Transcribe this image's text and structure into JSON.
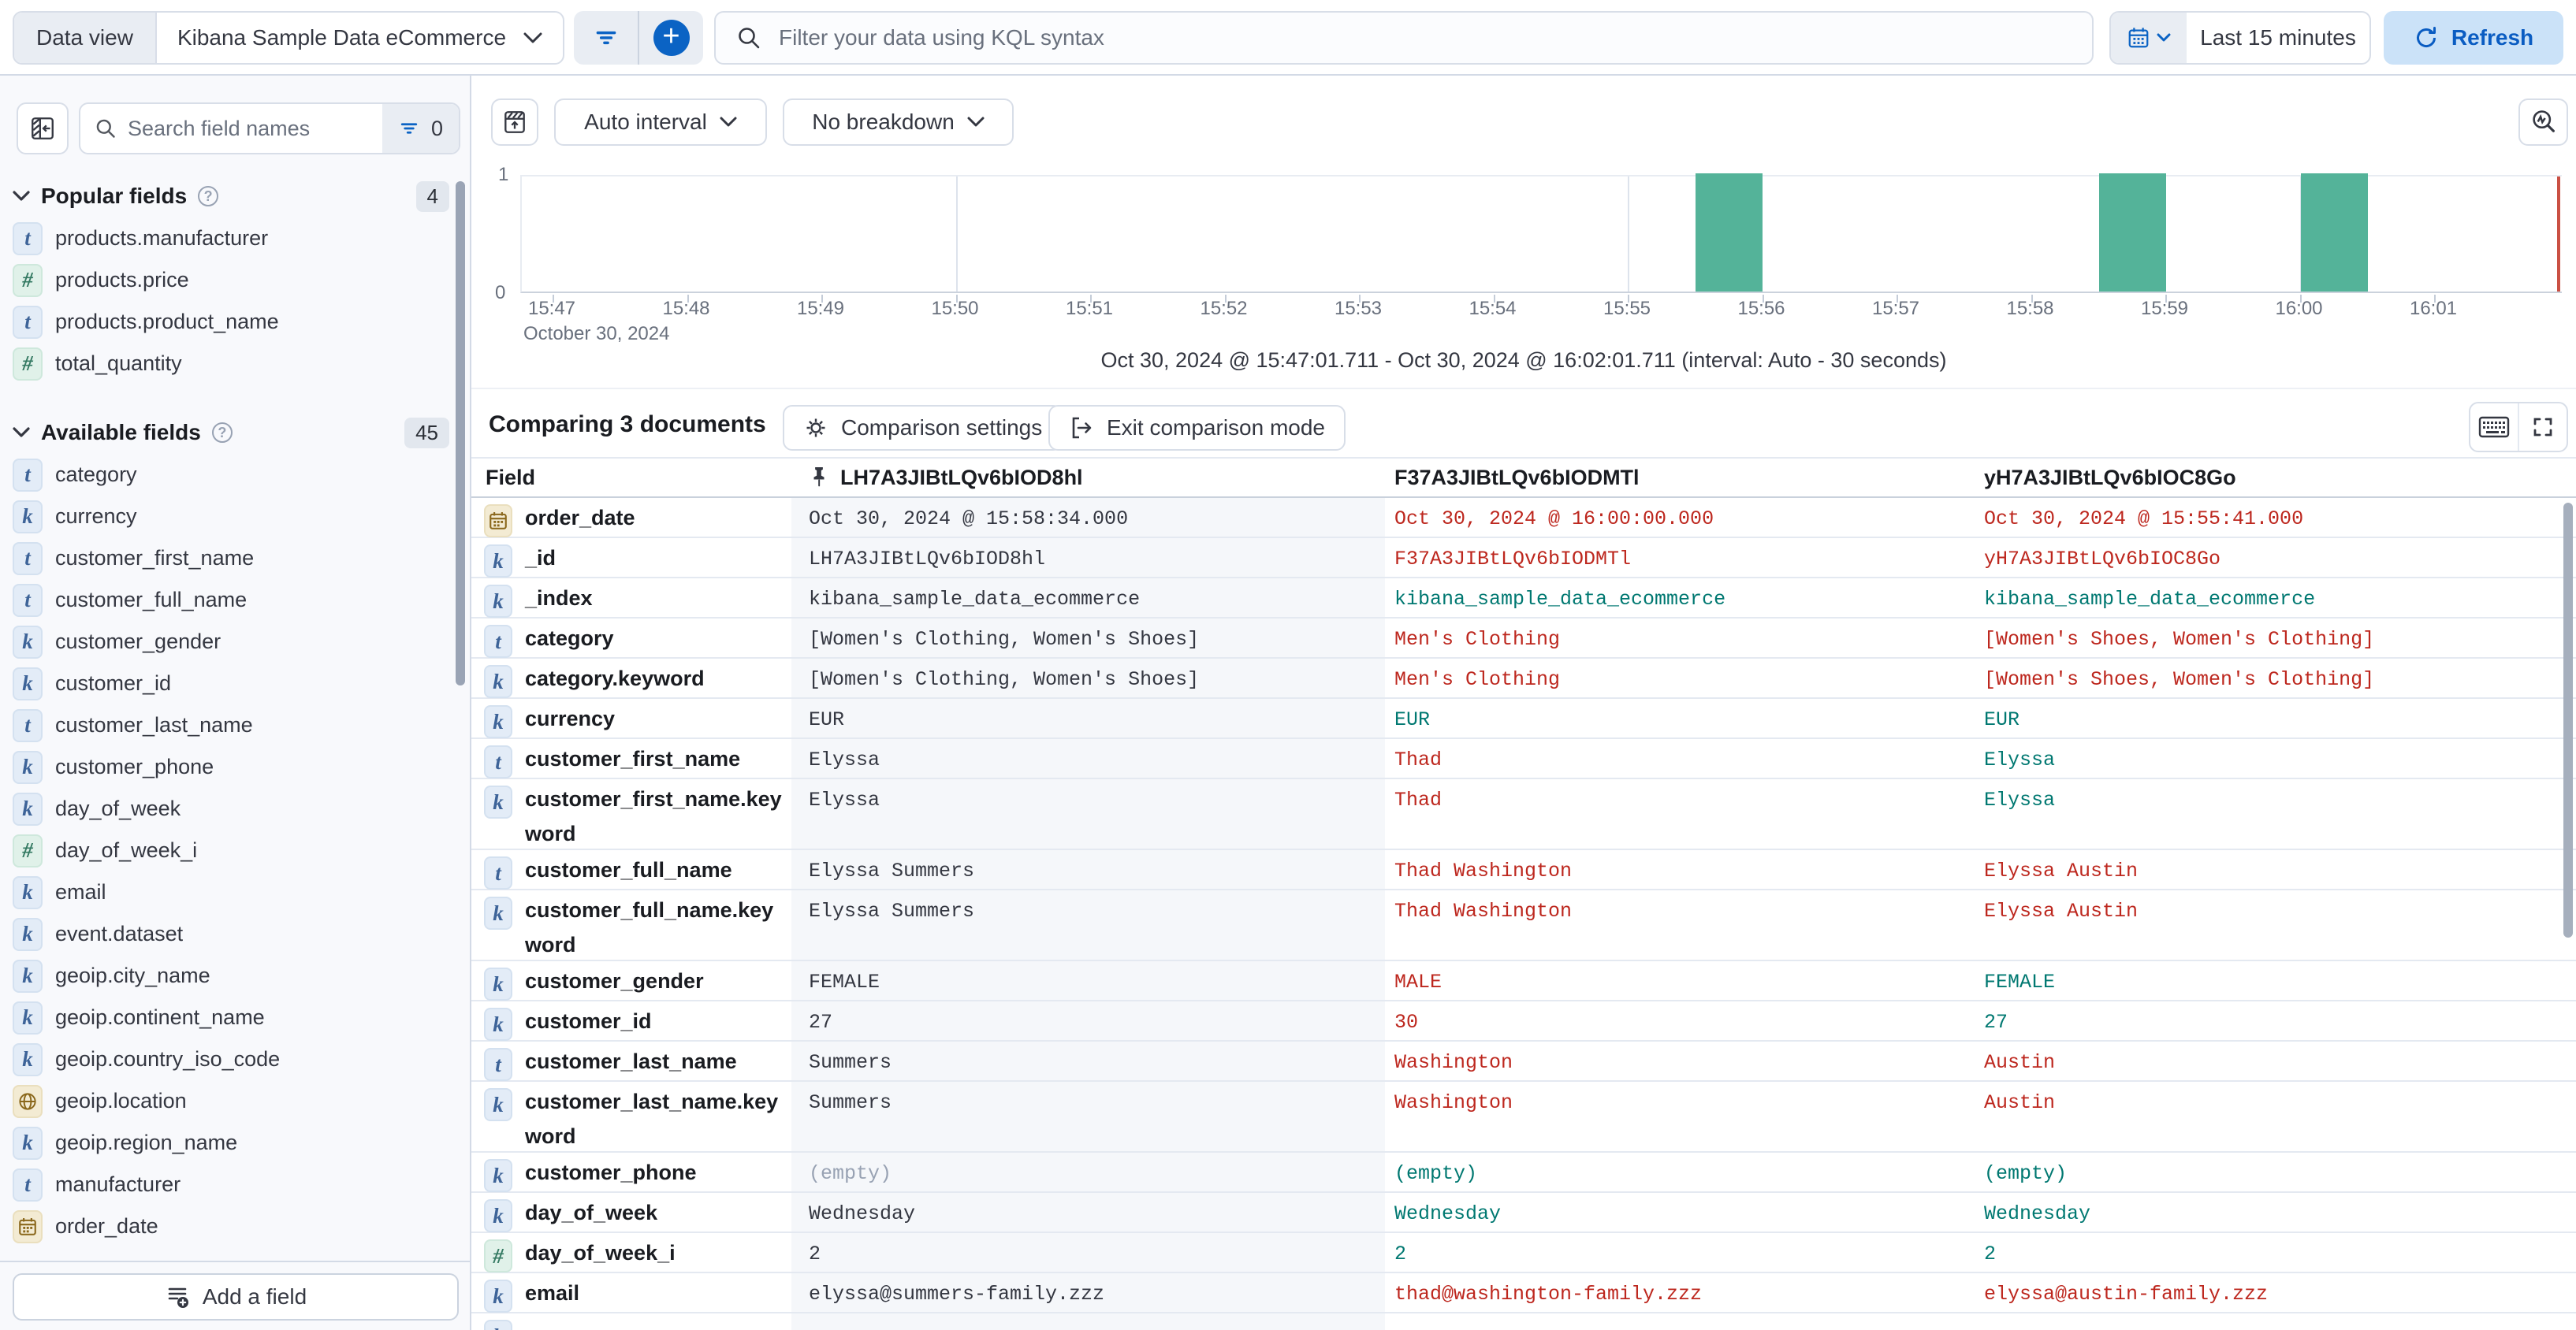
{
  "topbar": {
    "data_view_label": "Data view",
    "data_view_value": "Kibana Sample Data eCommerce",
    "kql_placeholder": "Filter your data using KQL syntax",
    "time_range": "Last 15 minutes",
    "refresh_label": "Refresh",
    "accent_color": "#0B63C4"
  },
  "sidebar": {
    "search_placeholder": "Search field names",
    "filter_count": "0",
    "sections": [
      {
        "title": "Popular fields",
        "count": "4",
        "items": [
          {
            "type": "t",
            "name": "products.manufacturer"
          },
          {
            "type": "num",
            "name": "products.price"
          },
          {
            "type": "t",
            "name": "products.product_name"
          },
          {
            "type": "num",
            "name": "total_quantity"
          }
        ]
      },
      {
        "title": "Available fields",
        "count": "45",
        "items": [
          {
            "type": "t",
            "name": "category"
          },
          {
            "type": "k",
            "name": "currency"
          },
          {
            "type": "t",
            "name": "customer_first_name"
          },
          {
            "type": "t",
            "name": "customer_full_name"
          },
          {
            "type": "k",
            "name": "customer_gender"
          },
          {
            "type": "k",
            "name": "customer_id"
          },
          {
            "type": "t",
            "name": "customer_last_name"
          },
          {
            "type": "k",
            "name": "customer_phone"
          },
          {
            "type": "k",
            "name": "day_of_week"
          },
          {
            "type": "num",
            "name": "day_of_week_i"
          },
          {
            "type": "k",
            "name": "email"
          },
          {
            "type": "k",
            "name": "event.dataset"
          },
          {
            "type": "k",
            "name": "geoip.city_name"
          },
          {
            "type": "k",
            "name": "geoip.continent_name"
          },
          {
            "type": "k",
            "name": "geoip.country_iso_code"
          },
          {
            "type": "geo",
            "name": "geoip.location"
          },
          {
            "type": "k",
            "name": "geoip.region_name"
          },
          {
            "type": "t",
            "name": "manufacturer"
          },
          {
            "type": "date",
            "name": "order_date"
          }
        ]
      }
    ],
    "add_field_label": "Add a field"
  },
  "chart": {
    "interval_label": "Auto interval",
    "breakdown_label": "No breakdown",
    "caption": "Oct 30, 2024 @ 15:47:01.711 - Oct 30, 2024 @ 16:02:01.711 (interval: Auto - 30 seconds)"
  },
  "chart_data": {
    "type": "bar",
    "x_axis_date": "October 30, 2024",
    "x_ticks": [
      "15:47",
      "15:48",
      "15:49",
      "15:50",
      "15:51",
      "15:52",
      "15:53",
      "15:54",
      "15:55",
      "15:56",
      "15:57",
      "15:58",
      "15:59",
      "16:00",
      "16:01"
    ],
    "y_ticks": [
      "0",
      "1"
    ],
    "ylim": [
      0,
      1
    ],
    "interval_seconds": 30,
    "gridline_ticks": [
      "15:50",
      "15:55",
      "16:00"
    ],
    "bars": [
      {
        "time": "15:55:30",
        "offset_min": 8.5,
        "count": 1
      },
      {
        "time": "15:58:30",
        "offset_min": 11.5,
        "count": 1
      },
      {
        "time": "16:00:00",
        "offset_min": 13.0,
        "count": 1
      }
    ],
    "end_marker": "16:02",
    "bar_color": "#54B399",
    "marker_color": "#CA5044"
  },
  "comparison": {
    "title": "Comparing 3 documents",
    "settings_label": "Comparison settings",
    "exit_label": "Exit comparison mode"
  },
  "table": {
    "field_header": "Field",
    "doc_headers": [
      "LH7A3JIBtLQv6bIOD8hl",
      "F37A3JIBtLQv6bIODMTl",
      "yH7A3JIBtLQv6bIOC8Go"
    ],
    "diff_color": "#BD271E",
    "match_color": "#007871",
    "rows": [
      {
        "icon": "date",
        "field": "order_date",
        "cells": [
          {
            "t": "Oct 30, 2024 @ 15:58:34.000",
            "s": "base"
          },
          {
            "t": "Oct 30, 2024 @ 16:00:00.000",
            "s": "diff"
          },
          {
            "t": "Oct 30, 2024 @ 15:55:41.000",
            "s": "diff"
          }
        ]
      },
      {
        "icon": "k",
        "field": "_id",
        "cells": [
          {
            "t": "LH7A3JIBtLQv6bIOD8hl",
            "s": "base"
          },
          {
            "t": "F37A3JIBtLQv6bIODMTl",
            "s": "diff"
          },
          {
            "t": "yH7A3JIBtLQv6bIOC8Go",
            "s": "diff"
          }
        ]
      },
      {
        "icon": "k",
        "field": "_index",
        "cells": [
          {
            "t": "kibana_sample_data_ecommerce",
            "s": "base"
          },
          {
            "t": "kibana_sample_data_ecommerce",
            "s": "same"
          },
          {
            "t": "kibana_sample_data_ecommerce",
            "s": "same"
          }
        ]
      },
      {
        "icon": "t",
        "field": "category",
        "cells": [
          {
            "t": "[Women's Clothing, Women's Shoes]",
            "s": "base"
          },
          {
            "t": "Men's Clothing",
            "s": "diff"
          },
          {
            "t": "[Women's Shoes, Women's Clothing]",
            "s": "diff"
          }
        ]
      },
      {
        "icon": "k",
        "field": "category.keyword",
        "cells": [
          {
            "t": "[Women's Clothing, Women's Shoes]",
            "s": "base"
          },
          {
            "t": "Men's Clothing",
            "s": "diff"
          },
          {
            "t": "[Women's Shoes, Women's Clothing]",
            "s": "diff"
          }
        ]
      },
      {
        "icon": "k",
        "field": "currency",
        "cells": [
          {
            "t": "EUR",
            "s": "base"
          },
          {
            "t": "EUR",
            "s": "same"
          },
          {
            "t": "EUR",
            "s": "same"
          }
        ]
      },
      {
        "icon": "t",
        "field": "customer_first_name",
        "cells": [
          {
            "t": "Elyssa",
            "s": "base"
          },
          {
            "t": "Thad",
            "s": "diff"
          },
          {
            "t": "Elyssa",
            "s": "same"
          }
        ]
      },
      {
        "icon": "k",
        "field": "customer_first_name.keyword",
        "tall": true,
        "cells": [
          {
            "t": "Elyssa",
            "s": "base"
          },
          {
            "t": "Thad",
            "s": "diff"
          },
          {
            "t": "Elyssa",
            "s": "same"
          }
        ]
      },
      {
        "icon": "t",
        "field": "customer_full_name",
        "cells": [
          {
            "t": "Elyssa Summers",
            "s": "base"
          },
          {
            "t": "Thad Washington",
            "s": "diff"
          },
          {
            "t": "Elyssa Austin",
            "s": "diff"
          }
        ]
      },
      {
        "icon": "k",
        "field": "customer_full_name.keyword",
        "tall": true,
        "cells": [
          {
            "t": "Elyssa Summers",
            "s": "base"
          },
          {
            "t": "Thad Washington",
            "s": "diff"
          },
          {
            "t": "Elyssa Austin",
            "s": "diff"
          }
        ]
      },
      {
        "icon": "k",
        "field": "customer_gender",
        "cells": [
          {
            "t": "FEMALE",
            "s": "base"
          },
          {
            "t": "MALE",
            "s": "diff"
          },
          {
            "t": "FEMALE",
            "s": "same"
          }
        ]
      },
      {
        "icon": "k",
        "field": "customer_id",
        "cells": [
          {
            "t": "27",
            "s": "base"
          },
          {
            "t": "30",
            "s": "diff"
          },
          {
            "t": "27",
            "s": "same"
          }
        ]
      },
      {
        "icon": "t",
        "field": "customer_last_name",
        "cells": [
          {
            "t": "Summers",
            "s": "base"
          },
          {
            "t": "Washington",
            "s": "diff"
          },
          {
            "t": "Austin",
            "s": "diff"
          }
        ]
      },
      {
        "icon": "k",
        "field": "customer_last_name.keyword",
        "tall": true,
        "cells": [
          {
            "t": "Summers",
            "s": "base"
          },
          {
            "t": "Washington",
            "s": "diff"
          },
          {
            "t": "Austin",
            "s": "diff"
          }
        ]
      },
      {
        "icon": "k",
        "field": "customer_phone",
        "cells": [
          {
            "t": "(empty)",
            "s": "muted"
          },
          {
            "t": "(empty)",
            "s": "same"
          },
          {
            "t": "(empty)",
            "s": "same"
          }
        ]
      },
      {
        "icon": "k",
        "field": "day_of_week",
        "cells": [
          {
            "t": "Wednesday",
            "s": "base"
          },
          {
            "t": "Wednesday",
            "s": "same"
          },
          {
            "t": "Wednesday",
            "s": "same"
          }
        ]
      },
      {
        "icon": "num",
        "field": "day_of_week_i",
        "cells": [
          {
            "t": "2",
            "s": "base"
          },
          {
            "t": "2",
            "s": "same"
          },
          {
            "t": "2",
            "s": "same"
          }
        ]
      },
      {
        "icon": "k",
        "field": "email",
        "cells": [
          {
            "t": "elyssa@summers-family.zzz",
            "s": "base"
          },
          {
            "t": "thad@washington-family.zzz",
            "s": "diff"
          },
          {
            "t": "elyssa@austin-family.zzz",
            "s": "diff"
          }
        ]
      },
      {
        "icon": "k",
        "field": "",
        "partial": true,
        "cells": [
          {
            "t": "",
            "s": "base"
          },
          {
            "t": "",
            "s": "base"
          },
          {
            "t": "",
            "s": "base"
          }
        ]
      }
    ]
  }
}
